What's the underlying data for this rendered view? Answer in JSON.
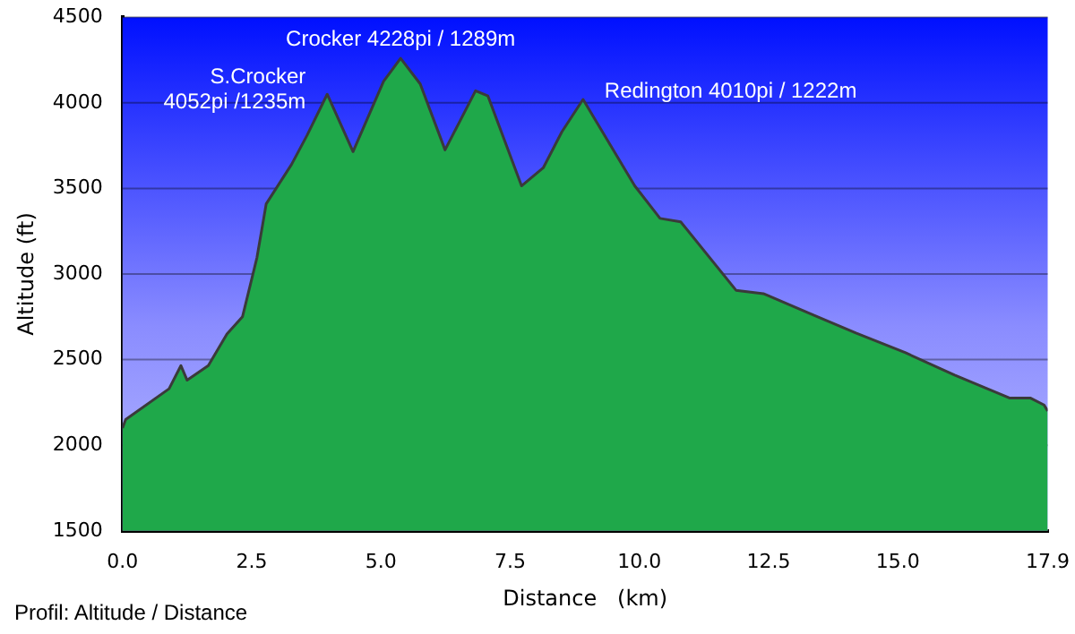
{
  "chart_data": {
    "type": "area",
    "xlabel": "Distance   (km)",
    "ylabel": "Altitude (ft)",
    "x": [
      0,
      0.06,
      0.9,
      1.13,
      1.25,
      1.66,
      2.02,
      2.32,
      2.6,
      2.78,
      3.27,
      3.57,
      3.96,
      4.46,
      5.05,
      5.38,
      5.76,
      6.24,
      6.83,
      7.07,
      7.72,
      8.14,
      8.5,
      8.91,
      9.91,
      10.4,
      10.8,
      11.87,
      12.4,
      13.37,
      14.19,
      15.15,
      16.1,
      17.17,
      17.57,
      17.83,
      17.9
    ],
    "series": [
      {
        "color": "#1fa84a",
        "values": [
          2100,
          2150,
          2330,
          2465,
          2380,
          2465,
          2650,
          2750,
          3095,
          3410,
          3640,
          3810,
          4050,
          3715,
          4125,
          4260,
          4110,
          3725,
          4070,
          4040,
          3515,
          3620,
          3830,
          4020,
          3515,
          3325,
          3305,
          2905,
          2885,
          2760,
          2655,
          2540,
          2410,
          2275,
          2275,
          2235,
          2200
        ]
      }
    ],
    "xlim": [
      0,
      17.9
    ],
    "xticks": [
      {
        "value": 0,
        "label": "0.0"
      },
      {
        "value": 2.5,
        "label": "2.5"
      },
      {
        "value": 5,
        "label": "5.0"
      },
      {
        "value": 7.5,
        "label": "7.5"
      },
      {
        "value": 10,
        "label": "10.0"
      },
      {
        "value": 12.5,
        "label": "12.5"
      },
      {
        "value": 15,
        "label": "15.0"
      },
      {
        "value": 17.9,
        "label": "17.9"
      }
    ],
    "ylim": [
      1500,
      4500
    ],
    "yticks": [
      1500,
      2000,
      2500,
      3000,
      3500,
      4000,
      4500
    ],
    "grid": "y",
    "legend": false,
    "annotations": [
      {
        "text": "S.Crocker\n4052pi /1235m",
        "x": 3.96,
        "y": 4052
      },
      {
        "text": "Crocker 4228pi / 1289m",
        "x": 5.38,
        "y": 4228
      },
      {
        "text": "Redington 4010pi / 1222m",
        "x": 8.91,
        "y": 4010
      },
      "Profil: Altitude / Distance"
    ]
  }
}
